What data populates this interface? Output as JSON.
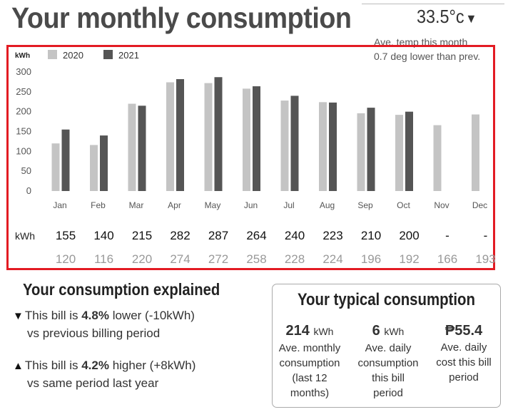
{
  "header": {
    "title": "Your monthly consumption",
    "temperature": "33.5°c",
    "temp_note_line1": "Ave. temp this month",
    "temp_note_line2": "0.7 deg lower than prev."
  },
  "chart_data": {
    "type": "bar",
    "unit_label": "kWh",
    "categories": [
      "Jan",
      "Feb",
      "Mar",
      "Apr",
      "May",
      "Jun",
      "Jul",
      "Aug",
      "Sep",
      "Oct",
      "Nov",
      "Dec"
    ],
    "series": [
      {
        "name": "2020",
        "color": "#c4c4c4",
        "values": [
          120,
          116,
          220,
          274,
          272,
          258,
          228,
          224,
          196,
          192,
          166,
          193
        ]
      },
      {
        "name": "2021",
        "color": "#555555",
        "values": [
          155,
          140,
          215,
          282,
          287,
          264,
          240,
          223,
          210,
          200,
          null,
          null
        ]
      }
    ],
    "ylim": [
      0,
      300
    ],
    "yticks": [
      0,
      50,
      100,
      150,
      200,
      250,
      300
    ],
    "legend_position": "top-left",
    "table_label": "kWh",
    "row_2021": [
      "155",
      "140",
      "215",
      "282",
      "287",
      "264",
      "240",
      "223",
      "210",
      "200",
      "-",
      "-"
    ],
    "row_2020": [
      "120",
      "116",
      "220",
      "274",
      "272",
      "258",
      "228",
      "224",
      "196",
      "192",
      "166",
      "193"
    ]
  },
  "explained": {
    "title": "Your consumption explained",
    "item1": {
      "arrow": "▼",
      "pre": "This bill is ",
      "value": "4.8%",
      "post": " lower (-10kWh)",
      "line2": "vs previous billing period"
    },
    "item2": {
      "arrow": "▲",
      "pre": "This bill is ",
      "value": "4.2%",
      "post": " higher (+8kWh)",
      "line2": "vs same period last year"
    }
  },
  "typical": {
    "title": "Your typical consumption",
    "cols": [
      {
        "value": "214",
        "unit": "kWh",
        "desc": [
          "Ave. monthly",
          "consumption",
          "(last 12",
          "months)"
        ]
      },
      {
        "value": "6",
        "unit": "kWh",
        "desc": [
          "Ave. daily",
          "consumption",
          "this bill",
          "period"
        ]
      },
      {
        "value": "₱55.4",
        "unit": "",
        "desc": [
          "Ave. daily",
          "cost this bill",
          "period",
          ""
        ]
      }
    ]
  }
}
